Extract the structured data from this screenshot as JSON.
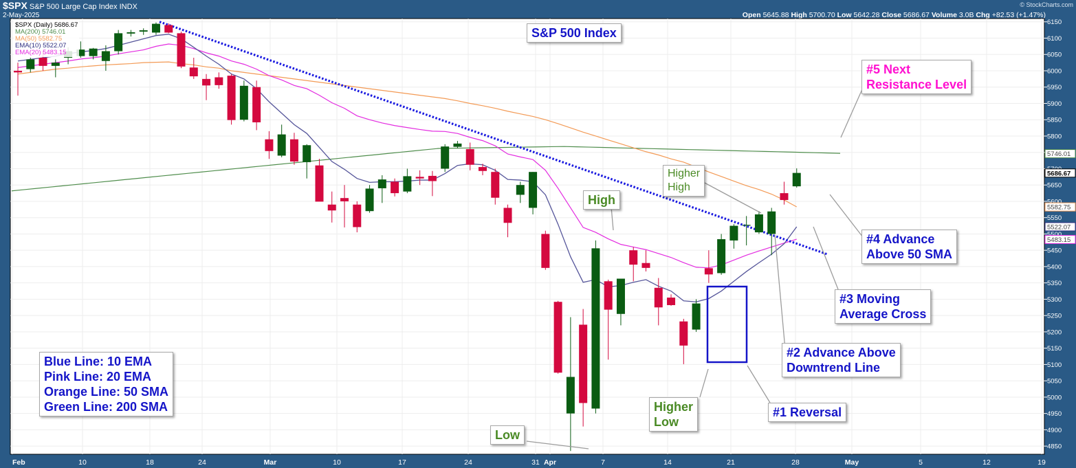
{
  "header": {
    "symbol": "$SPX",
    "name": "S&P 500 Large Cap Index",
    "exchange": "INDX",
    "date": "2-May-2025",
    "open_label": "Open",
    "open": "5645.88",
    "high_label": "High",
    "high": "5700.70",
    "low_label": "Low",
    "low": "5642.28",
    "close_label": "Close",
    "close": "5686.67",
    "volume_label": "Volume",
    "volume": "3.0B",
    "chg_label": "Chg",
    "chg": "+82.53 (+1.47%)",
    "credit": "© StockCharts.com"
  },
  "legend": {
    "main": "$SPX (Daily) 5686.67",
    "ma200": "MA(200) 5746.01",
    "ma50": "MA(50) 5582.75",
    "ema10": "EMA(10) 5522.07",
    "ema20": "EMA(20) 5483.15"
  },
  "annotations": {
    "title": "S&P 500 Index",
    "key_line1": "Blue Line: 10 EMA",
    "key_line2": "Pink Line: 20 EMA",
    "key_line3": "Orange Line: 50 SMA",
    "key_line4": "Green Line: 200 SMA",
    "n5_line1": "#5 Next",
    "n5_line2": "Resistance Level",
    "n4_line1": "#4 Advance",
    "n4_line2": "Above 50 SMA",
    "n3_line1": "#3 Moving",
    "n3_line2": "Average Cross",
    "n2_line1": "#2 Advance Above",
    "n2_line2": "Downtrend Line",
    "n1": "#1 Reversal",
    "higher_high_1": "Higher",
    "higher_high_2": "High",
    "higher_low_1": "Higher",
    "higher_low_2": "Low",
    "high": "High",
    "low": "Low"
  },
  "colors": {
    "up": "#0a5c12",
    "down": "#d4093f",
    "ema10": "#55559a",
    "ema20": "#e32be0",
    "sma50": "#f39a55",
    "sma200": "#4f8d4c",
    "trendline": "#1a1ae0"
  },
  "chart_data": {
    "type": "candlestick",
    "title": "S&P 500 Index",
    "y_ticks": [
      4850,
      4900,
      4950,
      5000,
      5050,
      5100,
      5150,
      5200,
      5250,
      5300,
      5350,
      5400,
      5450,
      5500,
      5550,
      5600,
      5650,
      5700,
      5750,
      5800,
      5850,
      5900,
      5950,
      6000,
      6050,
      6100,
      6150
    ],
    "ylim": [
      4825,
      6160
    ],
    "x_ticks": [
      "Feb",
      "10",
      "18",
      "24",
      "Mar",
      "10",
      "17",
      "24",
      "31",
      "Apr",
      "7",
      "14",
      "21",
      "28",
      "May",
      "5",
      "12",
      "19"
    ],
    "value_tags": {
      "ma200": "5746.01",
      "close": "5686.67",
      "ma50": "5582.75",
      "ema10": "5522.07",
      "ema20": "5483.15"
    },
    "candles": [
      {
        "o": 6000,
        "h": 6025,
        "l": 5924,
        "c": 5995
      },
      {
        "o": 6005,
        "h": 6040,
        "l": 5995,
        "c": 6035
      },
      {
        "o": 6040,
        "h": 6060,
        "l": 6000,
        "c": 6015
      },
      {
        "o": 6015,
        "h": 6035,
        "l": 5980,
        "c": 6025
      },
      {
        "o": 6040,
        "h": 6072,
        "l": 6020,
        "c": 6060
      },
      {
        "o": 6045,
        "h": 6090,
        "l": 6040,
        "c": 6065
      },
      {
        "o": 6045,
        "h": 6070,
        "l": 6035,
        "c": 6068
      },
      {
        "o": 6030,
        "h": 6078,
        "l": 6000,
        "c": 6060
      },
      {
        "o": 6060,
        "h": 6125,
        "l": 6050,
        "c": 6115
      },
      {
        "o": 6114,
        "h": 6125,
        "l": 6105,
        "c": 6118
      },
      {
        "o": 6120,
        "h": 6130,
        "l": 6110,
        "c": 6124
      },
      {
        "o": 6117,
        "h": 6148,
        "l": 6110,
        "c": 6144
      },
      {
        "o": 6140,
        "h": 6145,
        "l": 6115,
        "c": 6117
      },
      {
        "o": 6115,
        "h": 6120,
        "l": 6008,
        "c": 6013
      },
      {
        "o": 6010,
        "h": 6040,
        "l": 5975,
        "c": 5983
      },
      {
        "o": 5975,
        "h": 5990,
        "l": 5910,
        "c": 5955
      },
      {
        "o": 5980,
        "h": 5995,
        "l": 5945,
        "c": 5956
      },
      {
        "o": 5985,
        "h": 5990,
        "l": 5835,
        "c": 5849
      },
      {
        "o": 5850,
        "h": 5970,
        "l": 5845,
        "c": 5954
      },
      {
        "o": 5950,
        "h": 5970,
        "l": 5818,
        "c": 5842
      },
      {
        "o": 5790,
        "h": 5815,
        "l": 5730,
        "c": 5754
      },
      {
        "o": 5740,
        "h": 5835,
        "l": 5735,
        "c": 5805
      },
      {
        "o": 5790,
        "h": 5810,
        "l": 5712,
        "c": 5722
      },
      {
        "o": 5720,
        "h": 5775,
        "l": 5670,
        "c": 5772
      },
      {
        "o": 5710,
        "h": 5730,
        "l": 5600,
        "c": 5599
      },
      {
        "o": 5590,
        "h": 5630,
        "l": 5535,
        "c": 5572
      },
      {
        "o": 5610,
        "h": 5650,
        "l": 5520,
        "c": 5600
      },
      {
        "o": 5590,
        "h": 5600,
        "l": 5505,
        "c": 5521
      },
      {
        "o": 5570,
        "h": 5650,
        "l": 5565,
        "c": 5639
      },
      {
        "o": 5640,
        "h": 5680,
        "l": 5595,
        "c": 5667
      },
      {
        "o": 5660,
        "h": 5670,
        "l": 5615,
        "c": 5625
      },
      {
        "o": 5630,
        "h": 5700,
        "l": 5625,
        "c": 5677
      },
      {
        "o": 5675,
        "h": 5695,
        "l": 5650,
        "c": 5670
      },
      {
        "o": 5678,
        "h": 5693,
        "l": 5616,
        "c": 5662
      },
      {
        "o": 5700,
        "h": 5775,
        "l": 5690,
        "c": 5768
      },
      {
        "o": 5767,
        "h": 5785,
        "l": 5763,
        "c": 5777
      },
      {
        "o": 5760,
        "h": 5780,
        "l": 5695,
        "c": 5712
      },
      {
        "o": 5705,
        "h": 5715,
        "l": 5680,
        "c": 5693
      },
      {
        "o": 5690,
        "h": 5700,
        "l": 5590,
        "c": 5611
      },
      {
        "o": 5580,
        "h": 5590,
        "l": 5490,
        "c": 5534
      },
      {
        "o": 5620,
        "h": 5660,
        "l": 5595,
        "c": 5650
      },
      {
        "o": 5580,
        "h": 5690,
        "l": 5560,
        "c": 5690
      },
      {
        "o": 5500,
        "h": 5510,
        "l": 5390,
        "c": 5396
      },
      {
        "o": 5292,
        "h": 5295,
        "l": 5072,
        "c": 5075
      },
      {
        "o": 4950,
        "h": 5245,
        "l": 4835,
        "c": 5062
      },
      {
        "o": 5222,
        "h": 5270,
        "l": 4910,
        "c": 4982
      },
      {
        "o": 4965,
        "h": 5480,
        "l": 4950,
        "c": 5456
      },
      {
        "o": 5355,
        "h": 5360,
        "l": 5115,
        "c": 5268
      },
      {
        "o": 5255,
        "h": 5360,
        "l": 5220,
        "c": 5363
      },
      {
        "o": 5450,
        "h": 5460,
        "l": 5355,
        "c": 5406
      },
      {
        "o": 5411,
        "h": 5450,
        "l": 5385,
        "c": 5396
      },
      {
        "o": 5335,
        "h": 5365,
        "l": 5220,
        "c": 5275
      },
      {
        "o": 5305,
        "h": 5315,
        "l": 5280,
        "c": 5282
      },
      {
        "o": 5232,
        "h": 5240,
        "l": 5101,
        "c": 5158
      },
      {
        "o": 5207,
        "h": 5300,
        "l": 5200,
        "c": 5287
      },
      {
        "o": 5395,
        "h": 5450,
        "l": 5350,
        "c": 5376
      },
      {
        "o": 5380,
        "h": 5500,
        "l": 5375,
        "c": 5484
      },
      {
        "o": 5480,
        "h": 5530,
        "l": 5455,
        "c": 5525
      },
      {
        "o": 5528,
        "h": 5555,
        "l": 5465,
        "c": 5528
      },
      {
        "o": 5505,
        "h": 5570,
        "l": 5500,
        "c": 5560
      },
      {
        "o": 5500,
        "h": 5580,
        "l": 5435,
        "c": 5569
      },
      {
        "o": 5625,
        "h": 5660,
        "l": 5590,
        "c": 5604
      },
      {
        "o": 5646,
        "h": 5701,
        "l": 5642,
        "c": 5687
      }
    ]
  }
}
